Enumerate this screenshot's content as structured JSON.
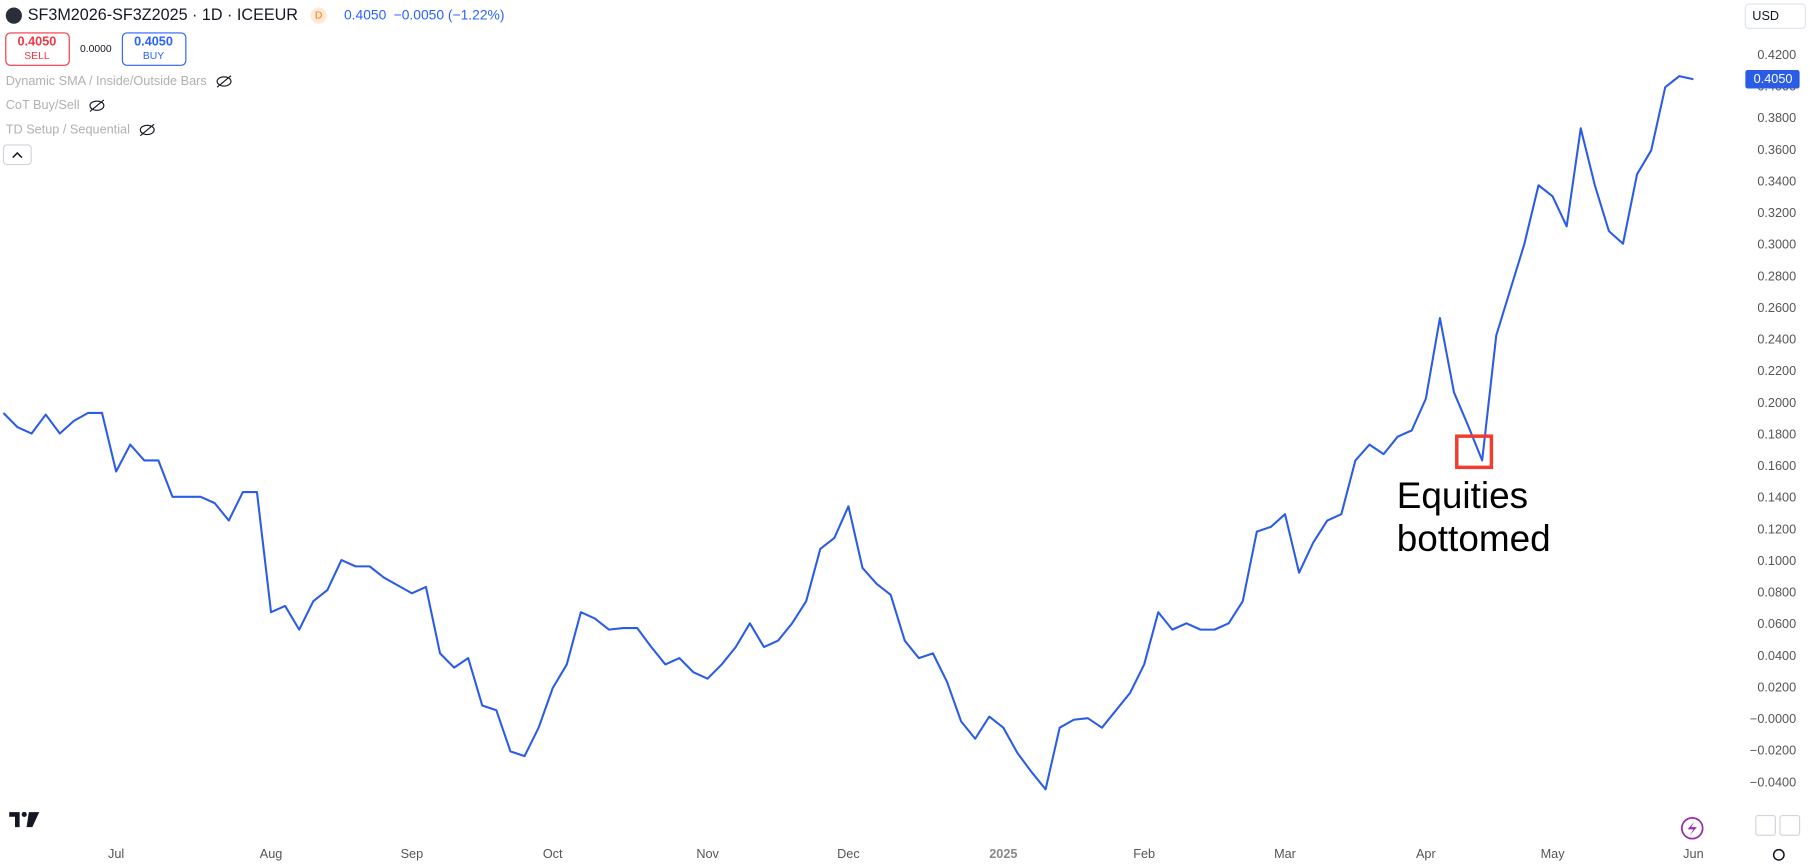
{
  "header": {
    "title": "SF3M2026-SF3Z2025 · 1D · ICEEUR",
    "badge": "D",
    "last": "0.4050",
    "change": "−0.0050 (−1.22%)",
    "sell_price": "0.4050",
    "sell_label": "SELL",
    "spread": "0.0000",
    "buy_price": "0.4050",
    "buy_label": "BUY",
    "currency": "USD",
    "price_tag": "0.4050"
  },
  "indicators": [
    "Dynamic SMA / Inside/Outside Bars",
    "CoT Buy/Sell",
    "TD Setup / Sequential"
  ],
  "chart_data": {
    "type": "line",
    "categories": [
      null,
      null,
      null,
      null,
      null,
      null,
      null,
      null,
      "Jul",
      null,
      null,
      null,
      null,
      null,
      null,
      null,
      null,
      null,
      null,
      "Aug",
      null,
      null,
      null,
      null,
      null,
      null,
      null,
      null,
      null,
      "Sep",
      null,
      null,
      null,
      null,
      null,
      null,
      null,
      null,
      null,
      "Oct",
      null,
      null,
      null,
      null,
      null,
      null,
      null,
      null,
      null,
      null,
      "Nov",
      null,
      null,
      null,
      null,
      null,
      null,
      null,
      null,
      null,
      "Dec",
      null,
      null,
      null,
      null,
      null,
      null,
      null,
      null,
      null,
      null,
      "2025",
      null,
      null,
      null,
      null,
      null,
      null,
      null,
      null,
      null,
      "Feb",
      null,
      null,
      null,
      null,
      null,
      null,
      null,
      null,
      null,
      "Mar",
      null,
      null,
      null,
      null,
      null,
      null,
      null,
      null,
      null,
      "Apr",
      null,
      null,
      null,
      null,
      null,
      null,
      null,
      null,
      "May",
      null,
      null,
      null,
      null,
      null,
      null,
      null,
      null,
      null,
      "Jun"
    ],
    "series": [
      {
        "color": "#2b5ce6",
        "values": [
          0.194,
          0.185,
          0.181,
          0.193,
          0.181,
          0.189,
          0.194,
          0.194,
          0.157,
          0.174,
          0.164,
          0.164,
          0.141,
          0.141,
          0.141,
          0.137,
          0.126,
          0.144,
          0.144,
          0.068,
          0.072,
          0.057,
          0.075,
          0.082,
          0.101,
          0.097,
          0.097,
          0.09,
          0.085,
          0.08,
          0.084,
          0.042,
          0.033,
          0.039,
          0.009,
          0.006,
          -0.02,
          -0.023,
          -0.005,
          0.02,
          0.035,
          0.068,
          0.064,
          0.057,
          0.058,
          0.058,
          0.046,
          0.035,
          0.039,
          0.03,
          0.026,
          0.035,
          0.046,
          0.061,
          0.046,
          0.05,
          0.061,
          0.075,
          0.108,
          0.115,
          0.135,
          0.096,
          0.086,
          0.079,
          0.05,
          0.039,
          0.042,
          0.024,
          -0.001,
          -0.012,
          0.002,
          -0.005,
          -0.021,
          -0.033,
          -0.044,
          -0.005,
          0.0,
          0.001,
          -0.005,
          0.006,
          0.017,
          0.035,
          0.068,
          0.057,
          0.061,
          0.057,
          0.057,
          0.061,
          0.075,
          0.119,
          0.122,
          0.13,
          0.093,
          0.112,
          0.126,
          0.13,
          0.164,
          0.174,
          0.168,
          0.179,
          0.183,
          0.203,
          0.254,
          0.207,
          0.186,
          0.164,
          0.243,
          0.272,
          0.301,
          0.338,
          0.331,
          0.312,
          0.374,
          0.338,
          0.309,
          0.301,
          0.345,
          0.36,
          0.4,
          0.407,
          0.405
        ]
      }
    ],
    "ylim": [
      -0.06,
      0.44
    ],
    "yticks": [
      {
        "value": 0.42,
        "label": "0.4200"
      },
      {
        "value": 0.4,
        "label": "0.4000"
      },
      {
        "value": 0.38,
        "label": "0.3800"
      },
      {
        "value": 0.36,
        "label": "0.3600"
      },
      {
        "value": 0.34,
        "label": "0.3400"
      },
      {
        "value": 0.32,
        "label": "0.3200"
      },
      {
        "value": 0.3,
        "label": "0.3000"
      },
      {
        "value": 0.28,
        "label": "0.2800"
      },
      {
        "value": 0.26,
        "label": "0.2600"
      },
      {
        "value": 0.24,
        "label": "0.2400"
      },
      {
        "value": 0.22,
        "label": "0.2200"
      },
      {
        "value": 0.2,
        "label": "0.2000"
      },
      {
        "value": 0.18,
        "label": "0.1800"
      },
      {
        "value": 0.16,
        "label": "0.1600"
      },
      {
        "value": 0.14,
        "label": "0.1400"
      },
      {
        "value": 0.12,
        "label": "0.1200"
      },
      {
        "value": 0.1,
        "label": "0.1000"
      },
      {
        "value": 0.08,
        "label": "0.0800"
      },
      {
        "value": 0.06,
        "label": "0.0600"
      },
      {
        "value": 0.04,
        "label": "0.0400"
      },
      {
        "value": 0.02,
        "label": "0.0200"
      },
      {
        "value": 0,
        "label": "−0.0000"
      },
      {
        "value": -0.02,
        "label": "−0.0200"
      },
      {
        "value": -0.04,
        "label": "−0.0400"
      }
    ],
    "grid": false,
    "annotation": {
      "index": 105,
      "lines": [
        "Equities",
        "bottomed"
      ],
      "box_color": "#f23c30"
    }
  }
}
